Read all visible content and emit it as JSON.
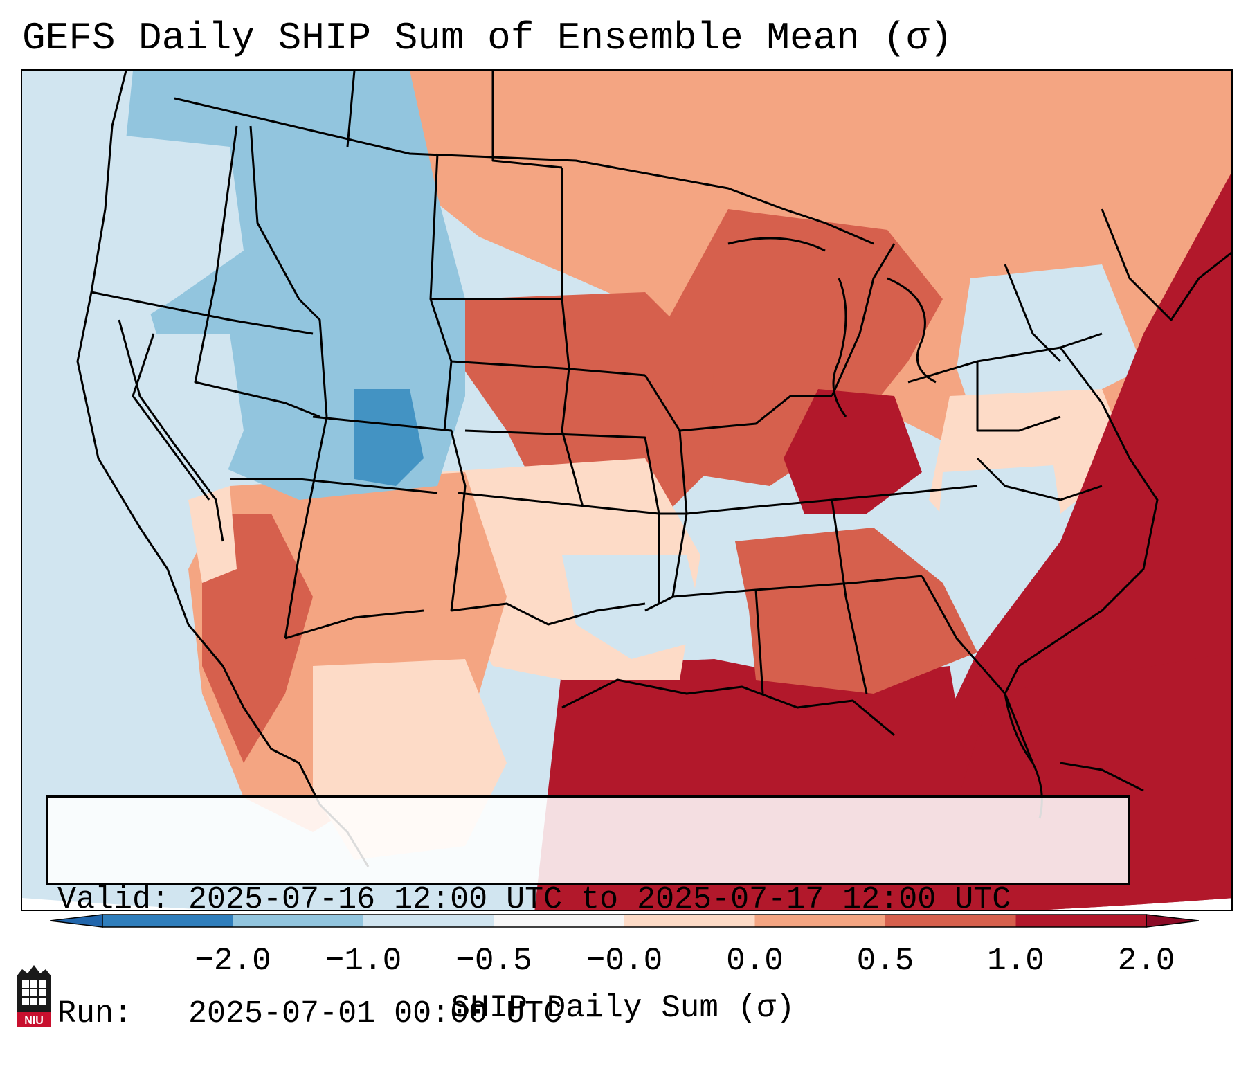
{
  "title": "GEFS Daily SHIP Sum of Ensemble Mean (σ)",
  "info": {
    "valid": "Valid: 2025-07-16 12:00 UTC to 2025-07-17 12:00 UTC",
    "run": "Run:   2025-07-01 00:00 UTC"
  },
  "colorbar": {
    "label": "SHIP Daily Sum (σ)",
    "ticks": [
      "−2.0",
      "−1.0",
      "−0.5",
      "−0.0",
      "0.0",
      "0.5",
      "1.0",
      "2.0"
    ],
    "colors": [
      "#2f7ebc",
      "#92c5de",
      "#d1e5f0",
      "#f7f7f7",
      "#fddbc7",
      "#f4a582",
      "#d6604d",
      "#b2182b"
    ],
    "under_color": "#2166ac",
    "over_color": "#8b0a26"
  },
  "logo": {
    "text": "NIU"
  }
}
